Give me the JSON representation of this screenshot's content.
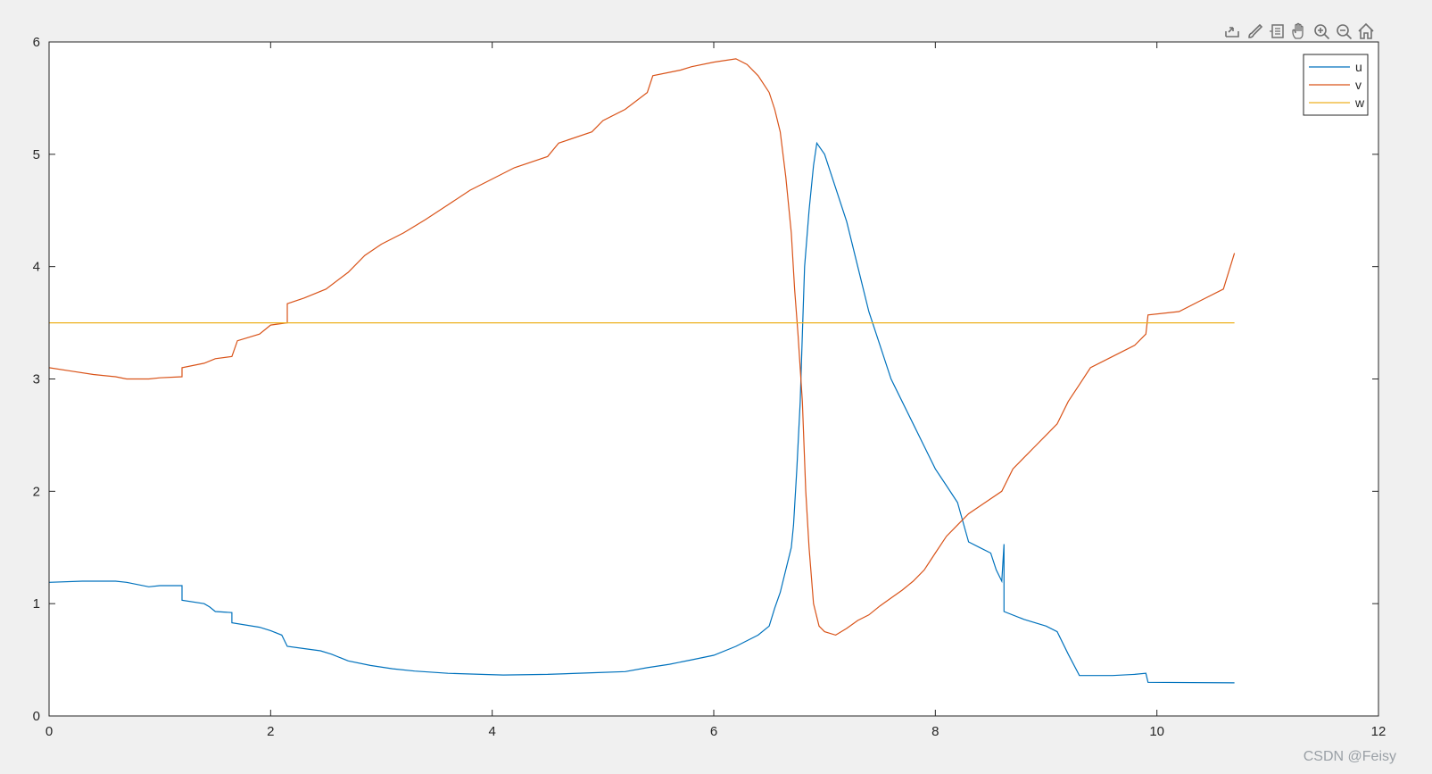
{
  "toolbar": {
    "icons": [
      "export-icon",
      "brush-icon",
      "data-tips-icon",
      "pan-icon",
      "zoom-in-icon",
      "zoom-out-icon",
      "home-icon"
    ]
  },
  "watermark": "CSDN @Feisy",
  "chart_data": {
    "type": "line",
    "title": "",
    "xlabel": "",
    "ylabel": "",
    "xlim": [
      0,
      12
    ],
    "ylim": [
      0,
      6
    ],
    "xticks": [
      0,
      2,
      4,
      6,
      8,
      10,
      12
    ],
    "yticks": [
      0,
      1,
      2,
      3,
      4,
      5,
      6
    ],
    "grid": false,
    "legend_position": "top-right",
    "series": [
      {
        "name": "u",
        "color": "#0072BD",
        "points": [
          [
            0,
            1.19
          ],
          [
            0.3,
            1.2
          ],
          [
            0.6,
            1.2
          ],
          [
            0.7,
            1.19
          ],
          [
            0.9,
            1.15
          ],
          [
            1.0,
            1.16
          ],
          [
            1.2,
            1.16
          ],
          [
            1.2,
            1.03
          ],
          [
            1.4,
            1.0
          ],
          [
            1.45,
            0.97
          ],
          [
            1.5,
            0.93
          ],
          [
            1.65,
            0.92
          ],
          [
            1.65,
            0.83
          ],
          [
            1.9,
            0.79
          ],
          [
            2.0,
            0.76
          ],
          [
            2.1,
            0.72
          ],
          [
            2.15,
            0.62
          ],
          [
            2.3,
            0.6
          ],
          [
            2.45,
            0.58
          ],
          [
            2.55,
            0.55
          ],
          [
            2.7,
            0.49
          ],
          [
            2.9,
            0.45
          ],
          [
            3.1,
            0.42
          ],
          [
            3.3,
            0.4
          ],
          [
            3.6,
            0.38
          ],
          [
            3.9,
            0.37
          ],
          [
            4.1,
            0.365
          ],
          [
            4.5,
            0.37
          ],
          [
            4.9,
            0.385
          ],
          [
            5.2,
            0.395
          ],
          [
            5.4,
            0.43
          ],
          [
            5.6,
            0.46
          ],
          [
            5.8,
            0.5
          ],
          [
            6.0,
            0.54
          ],
          [
            6.2,
            0.62
          ],
          [
            6.4,
            0.72
          ],
          [
            6.5,
            0.8
          ],
          [
            6.55,
            0.96
          ],
          [
            6.6,
            1.1
          ],
          [
            6.65,
            1.3
          ],
          [
            6.7,
            1.5
          ],
          [
            6.72,
            1.7
          ],
          [
            6.75,
            2.2
          ],
          [
            6.78,
            2.8
          ],
          [
            6.8,
            3.4
          ],
          [
            6.82,
            4.0
          ],
          [
            6.86,
            4.5
          ],
          [
            6.9,
            4.9
          ],
          [
            6.93,
            5.1
          ],
          [
            7.0,
            5.0
          ],
          [
            7.1,
            4.7
          ],
          [
            7.2,
            4.4
          ],
          [
            7.3,
            4.0
          ],
          [
            7.4,
            3.6
          ],
          [
            7.5,
            3.3
          ],
          [
            7.6,
            3.0
          ],
          [
            7.7,
            2.8
          ],
          [
            7.8,
            2.6
          ],
          [
            7.9,
            2.4
          ],
          [
            8.0,
            2.2
          ],
          [
            8.1,
            2.05
          ],
          [
            8.2,
            1.9
          ],
          [
            8.3,
            1.55
          ],
          [
            8.4,
            1.5
          ],
          [
            8.5,
            1.45
          ],
          [
            8.55,
            1.3
          ],
          [
            8.6,
            1.2
          ],
          [
            8.62,
            1.53
          ],
          [
            8.62,
            0.93
          ],
          [
            8.8,
            0.86
          ],
          [
            9.0,
            0.8
          ],
          [
            9.1,
            0.75
          ],
          [
            9.2,
            0.55
          ],
          [
            9.3,
            0.36
          ],
          [
            9.6,
            0.36
          ],
          [
            9.8,
            0.37
          ],
          [
            9.9,
            0.38
          ],
          [
            9.92,
            0.3
          ],
          [
            10.7,
            0.295
          ]
        ]
      },
      {
        "name": "v",
        "color": "#D95319",
        "points": [
          [
            0,
            3.1
          ],
          [
            0.2,
            3.07
          ],
          [
            0.4,
            3.04
          ],
          [
            0.6,
            3.02
          ],
          [
            0.7,
            3.0
          ],
          [
            0.9,
            3.0
          ],
          [
            1.0,
            3.01
          ],
          [
            1.2,
            3.02
          ],
          [
            1.2,
            3.1
          ],
          [
            1.4,
            3.14
          ],
          [
            1.5,
            3.18
          ],
          [
            1.65,
            3.2
          ],
          [
            1.7,
            3.34
          ],
          [
            1.9,
            3.4
          ],
          [
            2.0,
            3.48
          ],
          [
            2.15,
            3.5
          ],
          [
            2.15,
            3.67
          ],
          [
            2.3,
            3.72
          ],
          [
            2.5,
            3.8
          ],
          [
            2.7,
            3.95
          ],
          [
            2.85,
            4.1
          ],
          [
            3.0,
            4.2
          ],
          [
            3.2,
            4.3
          ],
          [
            3.4,
            4.42
          ],
          [
            3.6,
            4.55
          ],
          [
            3.8,
            4.68
          ],
          [
            4.0,
            4.78
          ],
          [
            4.2,
            4.88
          ],
          [
            4.5,
            4.98
          ],
          [
            4.6,
            5.1
          ],
          [
            4.9,
            5.2
          ],
          [
            5.0,
            5.3
          ],
          [
            5.2,
            5.4
          ],
          [
            5.4,
            5.55
          ],
          [
            5.45,
            5.7
          ],
          [
            5.7,
            5.75
          ],
          [
            5.8,
            5.78
          ],
          [
            6.0,
            5.82
          ],
          [
            6.2,
            5.85
          ],
          [
            6.3,
            5.8
          ],
          [
            6.4,
            5.7
          ],
          [
            6.5,
            5.55
          ],
          [
            6.55,
            5.4
          ],
          [
            6.6,
            5.2
          ],
          [
            6.65,
            4.8
          ],
          [
            6.7,
            4.3
          ],
          [
            6.73,
            3.8
          ],
          [
            6.76,
            3.4
          ],
          [
            6.8,
            2.8
          ],
          [
            6.83,
            2.0
          ],
          [
            6.86,
            1.5
          ],
          [
            6.9,
            1.0
          ],
          [
            6.95,
            0.8
          ],
          [
            7.0,
            0.75
          ],
          [
            7.1,
            0.72
          ],
          [
            7.2,
            0.78
          ],
          [
            7.3,
            0.85
          ],
          [
            7.4,
            0.9
          ],
          [
            7.5,
            0.98
          ],
          [
            7.6,
            1.05
          ],
          [
            7.7,
            1.12
          ],
          [
            7.8,
            1.2
          ],
          [
            7.9,
            1.3
          ],
          [
            8.0,
            1.45
          ],
          [
            8.1,
            1.6
          ],
          [
            8.2,
            1.7
          ],
          [
            8.3,
            1.8
          ],
          [
            8.45,
            1.9
          ],
          [
            8.6,
            2.0
          ],
          [
            8.7,
            2.2
          ],
          [
            8.8,
            2.3
          ],
          [
            8.9,
            2.4
          ],
          [
            9.0,
            2.5
          ],
          [
            9.1,
            2.6
          ],
          [
            9.2,
            2.8
          ],
          [
            9.3,
            2.95
          ],
          [
            9.4,
            3.1
          ],
          [
            9.6,
            3.2
          ],
          [
            9.8,
            3.3
          ],
          [
            9.9,
            3.4
          ],
          [
            9.92,
            3.57
          ],
          [
            10.2,
            3.6
          ],
          [
            10.4,
            3.7
          ],
          [
            10.6,
            3.8
          ],
          [
            10.7,
            4.12
          ]
        ]
      },
      {
        "name": "w",
        "color": "#EDB120",
        "points": [
          [
            0,
            3.5
          ],
          [
            10.7,
            3.5
          ]
        ]
      }
    ]
  }
}
